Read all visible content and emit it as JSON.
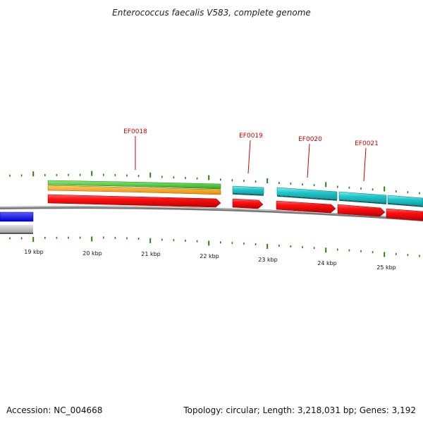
{
  "title": "Enterococcus faecalis V583, complete genome",
  "footer": {
    "accession": "Accession: NC_004668",
    "topology": "Topology: circular; Length: 3,218,031 bp; Genes: 3,192"
  },
  "scale_labels": [
    "19 kbp",
    "20 kbp",
    "21 kbp",
    "22 kbp",
    "23 kbp",
    "24 kbp",
    "25 kbp"
  ],
  "gene_labels": [
    "EF0018",
    "EF0019",
    "EF0020",
    "EF0021"
  ],
  "colors": {
    "backbone": "#888888",
    "tick": "#2e7d12",
    "label": "#cc0000",
    "cds": "#ee1111",
    "teal": "#22c3c8",
    "green": "#44cc33",
    "orange": "#ff9900",
    "blue": "#1a1aee",
    "grey": "#bbbbbb"
  }
}
